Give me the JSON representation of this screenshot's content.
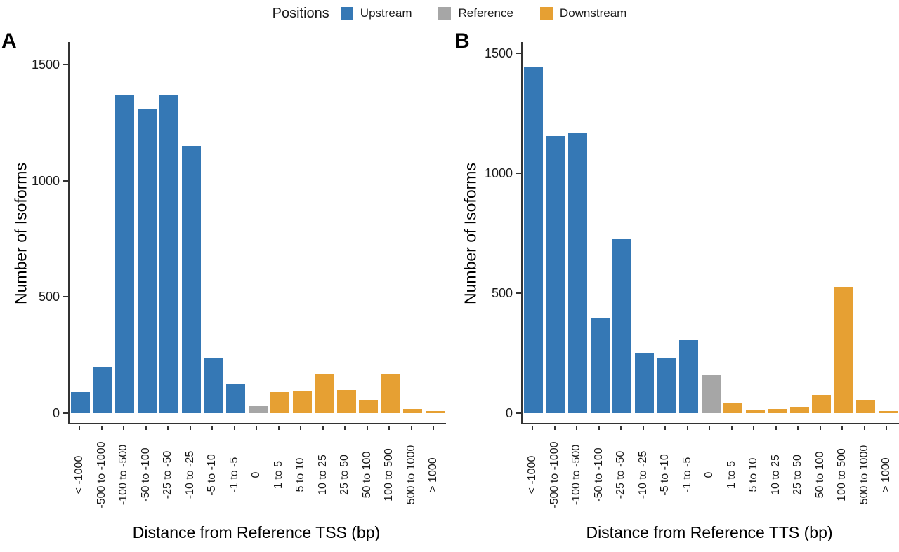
{
  "legend": {
    "title": "Positions",
    "items": [
      {
        "label": "Upstream",
        "color": "#3578b5"
      },
      {
        "label": "Reference",
        "color": "#a6a6a6"
      },
      {
        "label": "Downstream",
        "color": "#e6a033"
      }
    ]
  },
  "chart_data": [
    {
      "type": "bar",
      "panel_letter": "A",
      "ylabel": "Number of Isoforms",
      "xlabel": "Distance from Reference TSS (bp)",
      "ylim": [
        0,
        1500
      ],
      "yticks": [
        0,
        500,
        1000,
        1500
      ],
      "grid": false,
      "legend_position": "top",
      "categories": [
        "< -1000",
        "-500 to -1000",
        "-100 to -500",
        "-50 to -100",
        "-25 to -50",
        "-10 to -25",
        "-5 to -10",
        "-1 to -5",
        "0",
        "1 to 5",
        "5 to 10",
        "10 to 25",
        "25 to 50",
        "50 to 100",
        "100 to 500",
        "500 to 1000",
        "> 1000"
      ],
      "groups": [
        "Upstream",
        "Upstream",
        "Upstream",
        "Upstream",
        "Upstream",
        "Upstream",
        "Upstream",
        "Upstream",
        "Reference",
        "Downstream",
        "Downstream",
        "Downstream",
        "Downstream",
        "Downstream",
        "Downstream",
        "Downstream",
        "Downstream"
      ],
      "values": [
        90,
        200,
        1370,
        1310,
        1370,
        1150,
        235,
        125,
        30,
        90,
        98,
        170,
        100,
        53,
        168,
        17,
        8
      ]
    },
    {
      "type": "bar",
      "panel_letter": "B",
      "ylabel": "Number of Isoforms",
      "xlabel": "Distance from Reference TTS (bp)",
      "ylim": [
        0,
        1500
      ],
      "yticks": [
        0,
        500,
        1000,
        1500
      ],
      "grid": false,
      "legend_position": "top",
      "categories": [
        "< -1000",
        "-500 to -1000",
        "-100 to -500",
        "-50 to -100",
        "-25 to -50",
        "-10 to -25",
        "-5 to -10",
        "-1 to -5",
        "0",
        "1 to 5",
        "5 to 10",
        "10 to 25",
        "25 to 50",
        "50 to 100",
        "100 to 500",
        "500 to 1000",
        "> 1000"
      ],
      "groups": [
        "Upstream",
        "Upstream",
        "Upstream",
        "Upstream",
        "Upstream",
        "Upstream",
        "Upstream",
        "Upstream",
        "Reference",
        "Downstream",
        "Downstream",
        "Downstream",
        "Downstream",
        "Downstream",
        "Downstream",
        "Downstream",
        "Downstream"
      ],
      "values": [
        1440,
        1155,
        1165,
        395,
        725,
        250,
        230,
        305,
        160,
        45,
        15,
        18,
        26,
        75,
        525,
        53,
        10
      ]
    }
  ]
}
